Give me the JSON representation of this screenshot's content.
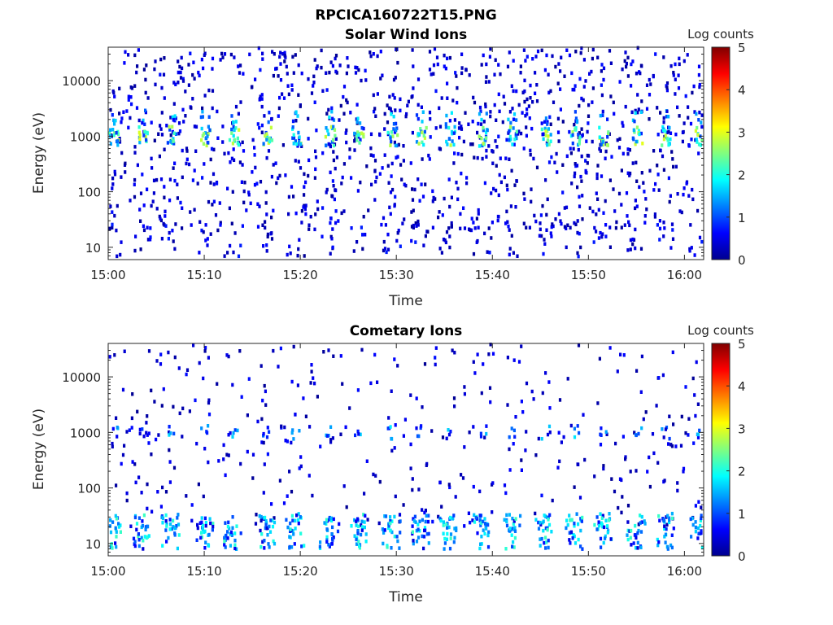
{
  "figure_title": "RPCICA160722T15.PNG",
  "chart_data": [
    {
      "type": "heatmap",
      "title": "Solar Wind Ions",
      "xlabel": "Time",
      "ylabel": "Energy (eV)",
      "x_ticks": [
        "15:00",
        "15:10",
        "15:20",
        "15:30",
        "15:40",
        "15:50",
        "16:00"
      ],
      "y_ticks": [
        "10",
        "100",
        "1000",
        "10000"
      ],
      "y_scale": "log",
      "xlim": [
        "15:00",
        "16:02"
      ],
      "ylim": [
        6,
        40000
      ],
      "colorbar": {
        "label": "Log counts",
        "ticks": [
          "0",
          "1",
          "2",
          "3",
          "4",
          "5"
        ],
        "range": [
          0,
          5
        ],
        "colormap": "jet"
      },
      "features": {
        "peak_energy_ev": 1000,
        "peak_log_counts": 3.0,
        "secondary_energy_ev": 2200,
        "low_energy_band_ev": [
          6,
          30
        ],
        "low_energy_log_counts": 0.5,
        "burst_times": [
          "15:00",
          "15:03",
          "15:06",
          "15:09.5",
          "15:12.5",
          "15:16",
          "15:19",
          "15:22.5",
          "15:25.5",
          "15:29",
          "15:32",
          "15:35",
          "15:38.5",
          "15:41.5",
          "15:45",
          "15:48",
          "15:51",
          "15:54.5",
          "15:57.5",
          "16:01"
        ]
      }
    },
    {
      "type": "heatmap",
      "title": "Cometary Ions",
      "xlabel": "Time",
      "ylabel": "Energy (eV)",
      "x_ticks": [
        "15:00",
        "15:10",
        "15:20",
        "15:30",
        "15:40",
        "15:50",
        "16:00"
      ],
      "y_ticks": [
        "10",
        "100",
        "1000",
        "10000"
      ],
      "y_scale": "log",
      "xlim": [
        "15:00",
        "16:02"
      ],
      "ylim": [
        6,
        40000
      ],
      "colorbar": {
        "label": "Log counts",
        "ticks": [
          "0",
          "1",
          "2",
          "3",
          "4",
          "5"
        ],
        "range": [
          0,
          5
        ],
        "colormap": "jet"
      },
      "features": {
        "peak_energy_ev": 20,
        "peak_log_counts": 2.0,
        "secondary_energy_ev": 1000,
        "secondary_log_counts": 0.8,
        "low_energy_band_ev": [
          8,
          35
        ],
        "burst_times": [
          "15:00",
          "15:03",
          "15:06",
          "15:09.5",
          "15:12.5",
          "15:16",
          "15:19",
          "15:22.5",
          "15:25.5",
          "15:29",
          "15:32",
          "15:35",
          "15:38.5",
          "15:41.5",
          "15:45",
          "15:48",
          "15:51",
          "15:54.5",
          "15:57.5",
          "16:01"
        ]
      }
    }
  ]
}
